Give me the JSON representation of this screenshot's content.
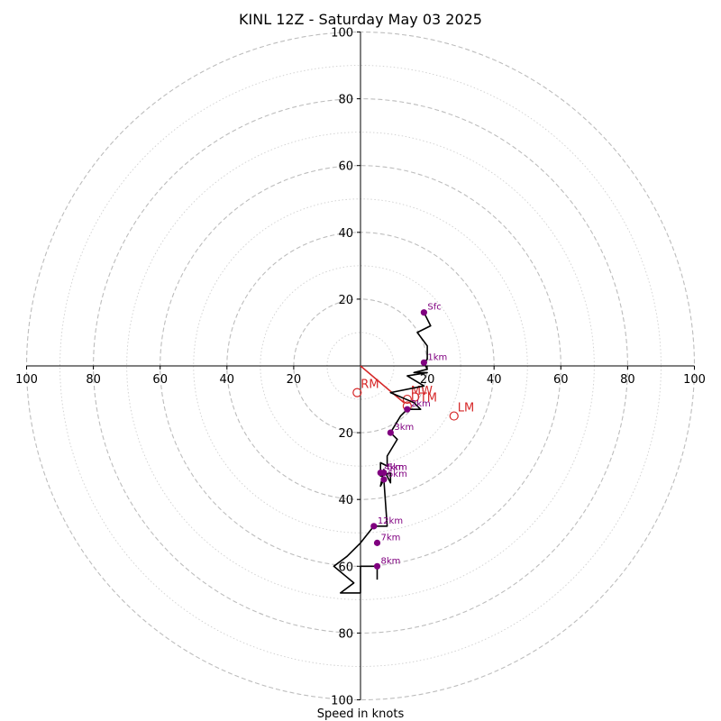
{
  "chart_data": {
    "type": "hodograph",
    "title": "KINL 12Z - Saturday May 03 2025",
    "xlabel": "Speed in knots",
    "range": [
      -100,
      100
    ],
    "ring_major_step": 20,
    "ring_minor_step": 10,
    "tick_labels": {
      "left": [
        "100",
        "80",
        "60",
        "40",
        "20"
      ],
      "right": [
        "20",
        "40",
        "60",
        "80",
        "100"
      ],
      "top": [
        "20",
        "40",
        "60",
        "80",
        "100"
      ],
      "bottom": [
        "20",
        "40",
        "60",
        "80",
        "100"
      ]
    },
    "profile": {
      "color": "#000000",
      "points": [
        [
          19,
          16
        ],
        [
          21,
          12
        ],
        [
          17,
          10
        ],
        [
          20,
          6
        ],
        [
          20,
          2
        ],
        [
          19,
          1
        ],
        [
          20,
          -1
        ],
        [
          16,
          -2
        ],
        [
          20,
          -2
        ],
        [
          14,
          -3
        ],
        [
          19,
          -6
        ],
        [
          9,
          -8
        ],
        [
          16,
          -11
        ],
        [
          18,
          -13
        ],
        [
          14,
          -13
        ],
        [
          12,
          -15
        ],
        [
          9,
          -20
        ],
        [
          10,
          -21
        ],
        [
          11,
          -22
        ],
        [
          8,
          -27
        ],
        [
          8,
          -30
        ],
        [
          6,
          -29
        ],
        [
          6,
          -33
        ],
        [
          9,
          -32
        ],
        [
          9,
          -35
        ],
        [
          7,
          -31
        ],
        [
          6,
          -36
        ],
        [
          7,
          -34
        ],
        [
          8,
          -48
        ],
        [
          4,
          -48
        ],
        [
          0,
          -53
        ],
        [
          -4,
          -57
        ],
        [
          -8,
          -60
        ],
        [
          -2,
          -65
        ],
        [
          -6,
          -68
        ],
        [
          0,
          -68
        ],
        [
          0,
          -60
        ],
        [
          5,
          -60
        ],
        [
          5,
          -64
        ]
      ]
    },
    "height_markers": [
      {
        "label": "Sfc",
        "u": 19,
        "v": 16
      },
      {
        "label": "1km",
        "u": 19,
        "v": 1
      },
      {
        "label": "2km",
        "u": 14,
        "v": -13
      },
      {
        "label": "3km",
        "u": 9,
        "v": -20
      },
      {
        "label": "4km",
        "u": 6,
        "v": -32
      },
      {
        "label": "5km",
        "u": 7,
        "v": -32
      },
      {
        "label": "6km",
        "u": 7,
        "v": -34
      },
      {
        "label": "12km",
        "u": 4,
        "v": -48
      },
      {
        "label": "7km",
        "u": 5,
        "v": -53
      },
      {
        "label": "8km",
        "u": 5,
        "v": -60
      }
    ],
    "marker_color": "#800080",
    "storm_motion": {
      "color": "#d62728",
      "vector": {
        "from": [
          0,
          0
        ],
        "to": [
          13,
          -11
        ]
      },
      "points": [
        {
          "label": "RM",
          "u": -1,
          "v": -8
        },
        {
          "label": "LM",
          "u": 28,
          "v": -15
        },
        {
          "label": "MW",
          "u": 14,
          "v": -10
        },
        {
          "label": "DTM",
          "u": 14,
          "v": -12
        }
      ]
    }
  }
}
